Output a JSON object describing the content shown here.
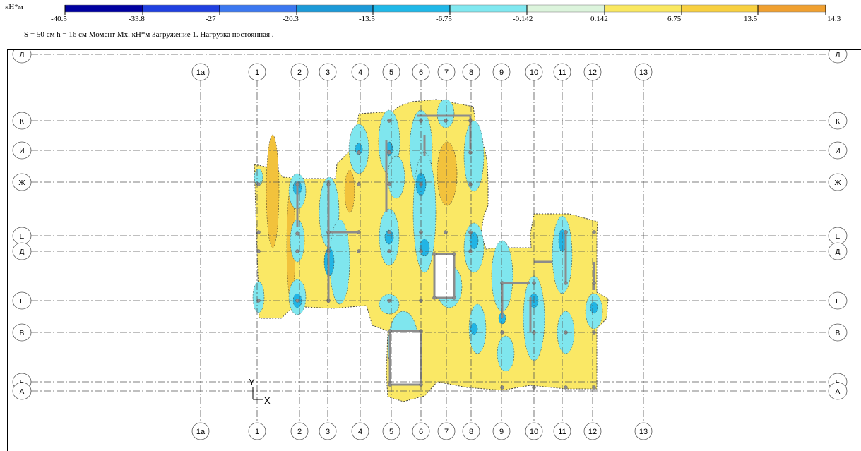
{
  "legend": {
    "unit": "кН*м",
    "ticks": [
      "-40.5",
      "-33.8",
      "-27",
      "-20.3",
      "-13.5",
      "-6.75",
      "-0.142",
      "0.142",
      "6.75",
      "13.5",
      "14.3"
    ],
    "colors": [
      "#0000a0",
      "#2040e0",
      "#3c78f0",
      "#1c9ad8",
      "#20b8e8",
      "#80e8f0",
      "#dcf4dc",
      "#fae860",
      "#f8d040",
      "#f0a030"
    ]
  },
  "caption": "S =  50 см   h =  16 см   Момент Мx. кН*м   Загружение 1.    Нагрузка постоянная .",
  "axes": {
    "columns": [
      "1а",
      "1",
      "2",
      "3",
      "4",
      "5",
      "6",
      "7",
      "8",
      "9",
      "10",
      "11",
      "12",
      "13"
    ],
    "rows": [
      "Л",
      "К",
      "И",
      "Ж",
      "Е",
      "Д",
      "Г",
      "В",
      "Б",
      "А"
    ]
  },
  "coord": {
    "y": "Y",
    "x": "X"
  },
  "palette": {
    "slab": "#fae865",
    "slab_dark": "#f2c23c",
    "neg": "#7fe6ee",
    "neg_deep": "#22b4e4",
    "grid": "#555555",
    "wall": "#8c8c8c"
  }
}
